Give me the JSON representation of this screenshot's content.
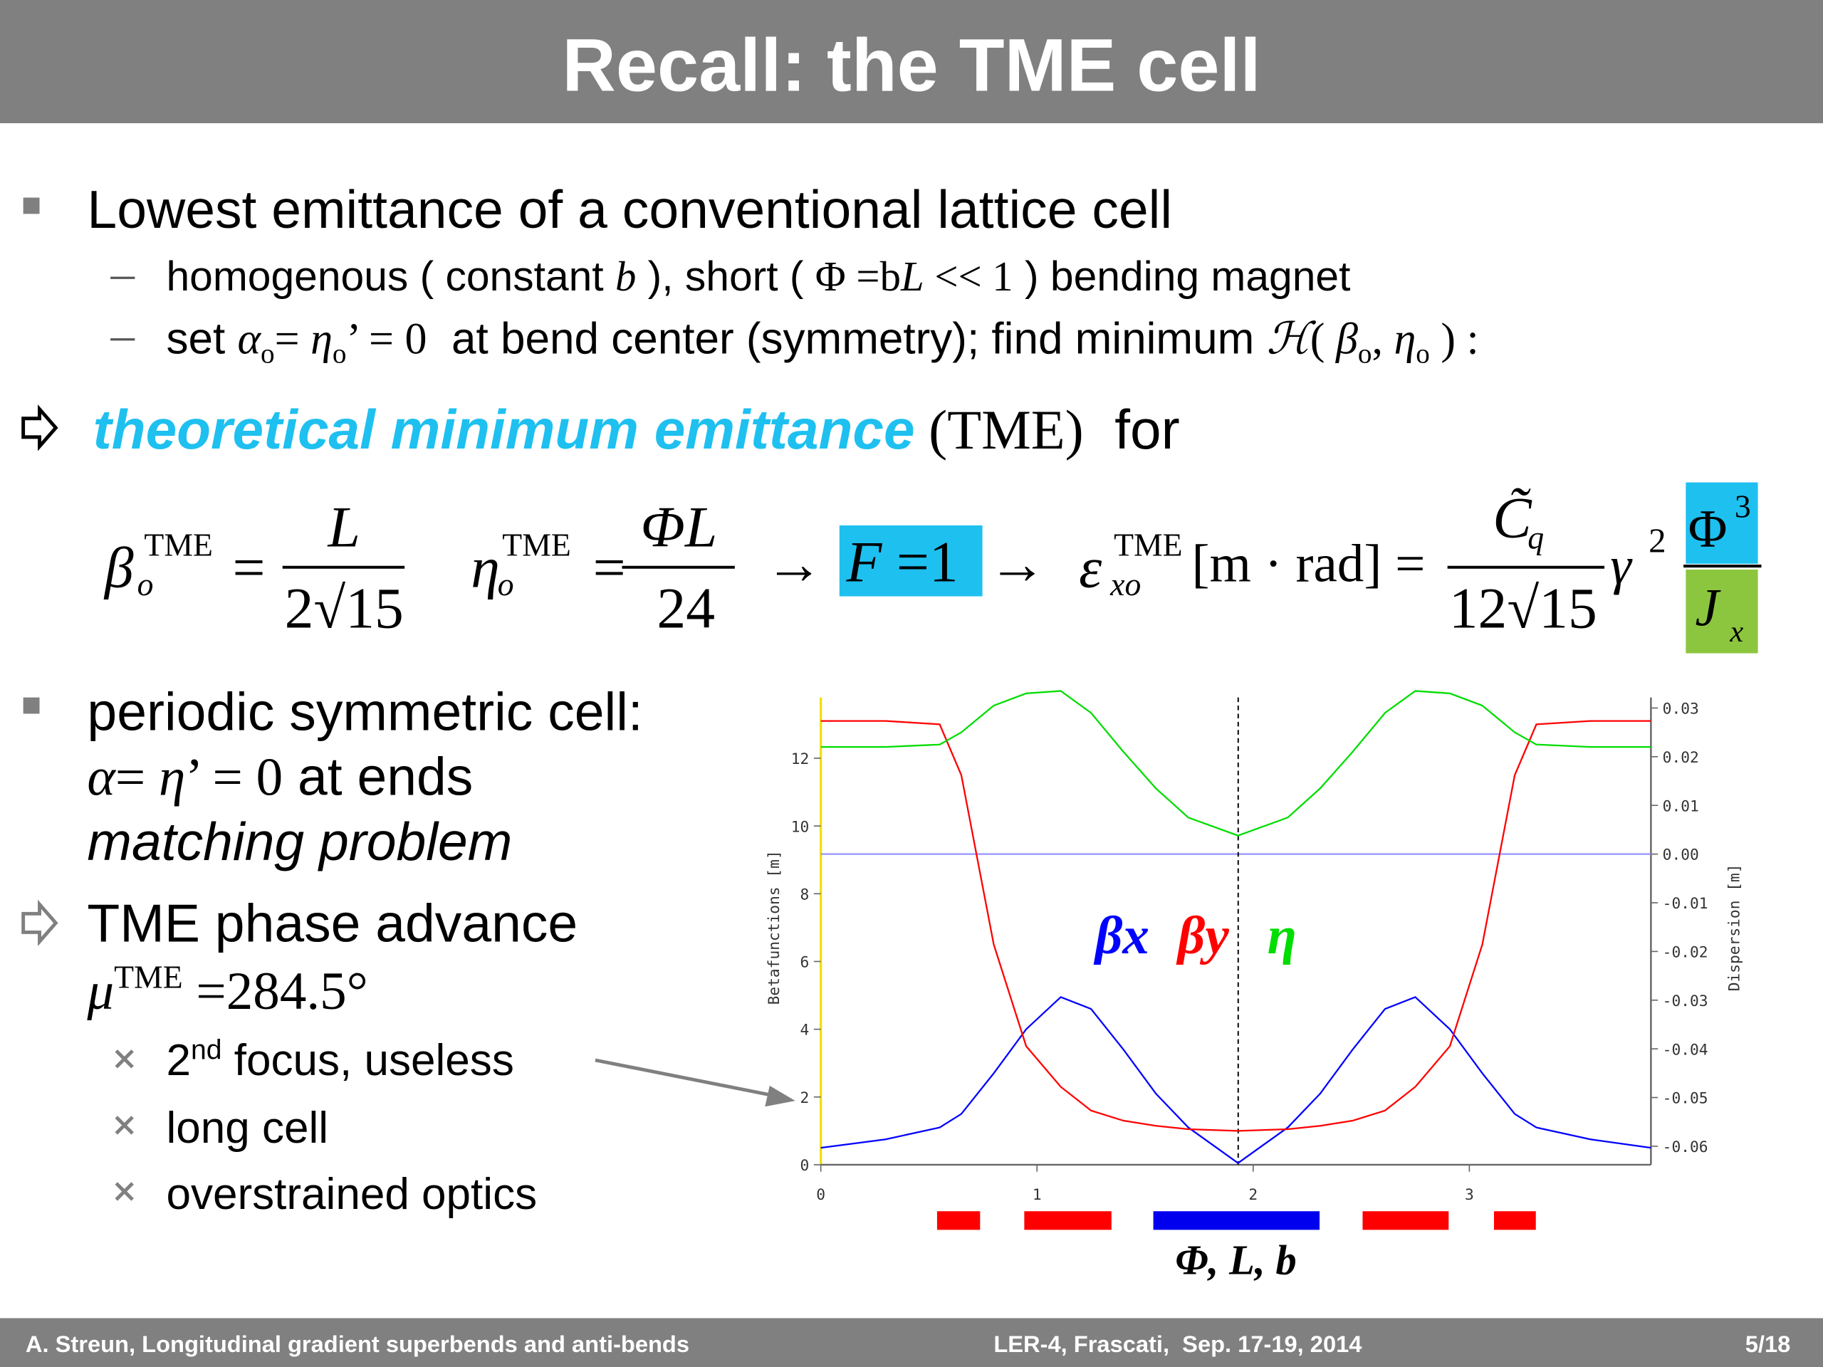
{
  "header": {
    "title": "Recall: the TME cell"
  },
  "bullets": {
    "b0": "Lowest emittance of a conventional lattice cell",
    "sub0": [
      "homogenous ( constant ",
      "b",
      " ), short ( ",
      "Φ =b",
      "L",
      " << 1",
      " ) bending magnet"
    ],
    "sub1": [
      "set ",
      "α",
      "o",
      "= ",
      "η",
      "o",
      "’ = 0",
      "  at bend center (symmetry); find minimum ",
      "ℋ",
      "( ",
      "β",
      "o",
      ", ",
      "η",
      "o",
      " ) :"
    ],
    "arrow1": [
      "theoretical minimum emittance",
      " (TME)",
      "  for"
    ],
    "formula": [
      "β",
      "TME",
      "o",
      "=",
      "L",
      "2√15",
      "η",
      "TME",
      "o",
      "=",
      "ΦL",
      "24",
      "→",
      "F",
      " =1",
      "→",
      "ε",
      "TME",
      "xo",
      "[m · rad] =",
      "C̃",
      "q",
      "12√15",
      "γ",
      "2",
      "Φ",
      "3",
      "J",
      "x"
    ],
    "b1": [
      "periodic symmetric cell:",
      "α",
      "= ",
      "η",
      "’ = 0",
      " at ends",
      "matching problem"
    ],
    "arrow2": [
      "TME phase advance",
      "μ",
      "TME",
      " =284.5°"
    ],
    "sublist": [
      [
        "2",
        "nd",
        " focus, useless"
      ],
      [
        "long cell"
      ],
      [
        "overstrained optics"
      ]
    ]
  },
  "chart_data": {
    "type": "line",
    "ylabel": "Betafunctions [m]",
    "y2label": "Dispersion [m]",
    "magnet_label": "Φ, L, b",
    "x": [
      0,
      0.3,
      0.55,
      0.65,
      0.8,
      0.95,
      1.11,
      1.25,
      1.4,
      1.55,
      1.7,
      1.93,
      2.16,
      2.31,
      2.46,
      2.61,
      2.75,
      2.91,
      3.06,
      3.21,
      3.31,
      3.56,
      3.84
    ],
    "xlim": [
      0,
      3.84
    ],
    "xticks": [
      0,
      1,
      2,
      3
    ],
    "ylim": [
      0,
      14
    ],
    "yticks": [
      0,
      2,
      4,
      6,
      8,
      10,
      12
    ],
    "y2lim": [
      -0.0638,
      0.0336
    ],
    "y2ticks": [
      -0.06,
      -0.05,
      -0.04,
      -0.03,
      -0.02,
      -0.01,
      {
        "value": 0,
        "label": "0.00"
      },
      0.01,
      0.02,
      0.03
    ],
    "series": [
      {
        "name": "βx",
        "color": "#0000ff",
        "values": [
          0.5,
          0.75,
          1.1,
          1.5,
          2.7,
          4.0,
          4.95,
          4.6,
          3.4,
          2.1,
          1.1,
          0.05,
          1.1,
          2.1,
          3.4,
          4.6,
          4.95,
          4.0,
          2.7,
          1.5,
          1.1,
          0.75,
          0.5
        ]
      },
      {
        "name": "βy",
        "color": "#ff0000",
        "values": [
          13.1,
          13.1,
          13.0,
          11.5,
          6.5,
          3.5,
          2.3,
          1.6,
          1.3,
          1.15,
          1.05,
          1.0,
          1.05,
          1.15,
          1.3,
          1.6,
          2.3,
          3.5,
          6.5,
          11.5,
          13.0,
          13.1,
          13.1
        ]
      },
      {
        "name": "η",
        "color": "#00dd00",
        "axis": "y2",
        "values": [
          0.022,
          0.022,
          0.0225,
          0.025,
          0.0305,
          0.033,
          0.0335,
          0.029,
          0.021,
          0.0135,
          0.0075,
          0.0038,
          0.0075,
          0.0135,
          0.021,
          0.029,
          0.0335,
          0.033,
          0.0305,
          0.025,
          0.0225,
          0.022,
          0.022
        ]
      }
    ]
  },
  "footer": {
    "left": "A. Streun, Longitudinal gradient superbends and anti-bends",
    "center": "LER-4, Frascati,  Sep. 17-19, 2014",
    "right": "5/18"
  }
}
